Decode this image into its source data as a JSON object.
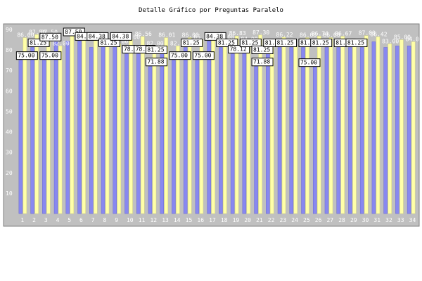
{
  "title": "Detalle Gráfico por Preguntas Paralelo",
  "colors": {
    "background": "#ffffff",
    "plot_area": "#c0c0c0",
    "series_a": "#8888f0",
    "series_b": "#ffffa8",
    "label_box": "#ffffff"
  },
  "chart_data": {
    "type": "bar",
    "title": "Detalle Gráfico por Preguntas Paralelo",
    "xlabel": "",
    "ylabel": "",
    "ylim": [
      0,
      90
    ],
    "yticks": [
      10,
      20,
      30,
      40,
      50,
      60,
      70,
      80,
      90
    ],
    "grid": false,
    "legend": "none",
    "categories": [
      "1",
      "2",
      "3",
      "4",
      "5",
      "6",
      "7",
      "8",
      "9",
      "10",
      "11",
      "12",
      "13",
      "14",
      "15",
      "16",
      "17",
      "18",
      "19",
      "20",
      "21",
      "22",
      "23",
      "24",
      "25",
      "26",
      "27",
      "28",
      "29",
      "30",
      "31",
      "32",
      "33",
      "34"
    ],
    "series": [
      {
        "values": [
          75.0,
          81.25,
          75.0,
          87.5,
          84.38,
          84.38,
          81.25,
          84.38,
          84.38,
          78.12,
          78.12,
          71.88,
          81.25,
          75.0,
          81.25,
          75.0,
          84.38,
          81.25,
          78.12,
          81.25,
          71.88,
          81.25,
          81.25,
          81.25,
          81.25,
          75.0,
          81.25,
          81.25,
          81.25,
          81.25,
          84.0,
          81.25,
          82.0,
          82.0
        ]
      },
      {
        "values": [
          86.0,
          87.5,
          87.5,
          82.0,
          88.0,
          86.0,
          86.0,
          83.0,
          83.0,
          85.0,
          86.56,
          82.0,
          86.01,
          82.0,
          86.0,
          85.0,
          86.0,
          85.0,
          86.83,
          84.0,
          87.3,
          82.0,
          86.22,
          82.0,
          86.0,
          86.74,
          86.0,
          86.67,
          82.0,
          87.0,
          86.42,
          83.0,
          85.0,
          84.0
        ]
      }
    ],
    "labeled_points": [
      {
        "category": "1",
        "value_text": "75.00"
      },
      {
        "category": "2",
        "value_text": "81.25"
      },
      {
        "category": "3",
        "value_text": "75.00"
      },
      {
        "category": "3",
        "value_text": "87.50"
      },
      {
        "category": "5",
        "value_text": "87.50"
      },
      {
        "category": "6",
        "value_text": "84.38"
      },
      {
        "category": "7",
        "value_text": "84.38"
      },
      {
        "category": "8",
        "value_text": "81.25"
      },
      {
        "category": "9",
        "value_text": "84.38"
      },
      {
        "category": "10",
        "value_text": "78.12"
      },
      {
        "category": "11",
        "value_text": "78.12"
      },
      {
        "category": "12",
        "value_text": "71.88"
      },
      {
        "category": "12",
        "value_text": "81.25"
      },
      {
        "category": "14",
        "value_text": "75.00"
      },
      {
        "category": "15",
        "value_text": "81.25"
      },
      {
        "category": "16",
        "value_text": "75.00"
      },
      {
        "category": "17",
        "value_text": "84.38"
      },
      {
        "category": "18",
        "value_text": "81.25"
      },
      {
        "category": "19",
        "value_text": "78.12"
      },
      {
        "category": "20",
        "value_text": "81.25"
      },
      {
        "category": "21",
        "value_text": "71.88"
      },
      {
        "category": "21",
        "value_text": "81.25"
      },
      {
        "category": "22",
        "value_text": "81.25"
      },
      {
        "category": "23",
        "value_text": "81.25"
      },
      {
        "category": "25",
        "value_text": "81.25"
      },
      {
        "category": "25",
        "value_text": "75.00"
      },
      {
        "category": "26",
        "value_text": "81.25"
      },
      {
        "category": "28",
        "value_text": "81.25"
      },
      {
        "category": "29",
        "value_text": "81.25"
      }
    ]
  }
}
